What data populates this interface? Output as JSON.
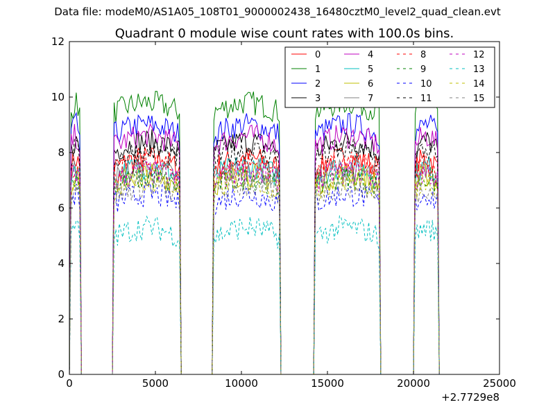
{
  "header": {
    "suptitle": "Data file: modeM0/AS1A05_108T01_9000002438_16480cztM0_level2_quad_clean.evt"
  },
  "chart_data": {
    "type": "line",
    "title": "Quadrant 0 module wise count rates with 100.0s bins.",
    "xlabel": "",
    "ylabel": "",
    "x_offset_label": "+2.7729e8",
    "xlim": [
      0,
      25000
    ],
    "ylim": [
      0,
      12
    ],
    "xticks": [
      0,
      5000,
      10000,
      15000,
      20000,
      25000
    ],
    "xtick_labels": [
      "0",
      "5000",
      "10000",
      "15000",
      "20000",
      "25000"
    ],
    "yticks": [
      0,
      2,
      4,
      6,
      8,
      10,
      12
    ],
    "ytick_labels": [
      "0",
      "2",
      "4",
      "6",
      "8",
      "10",
      "12"
    ],
    "grid": false,
    "legend_placement": "top-right",
    "legend_columns": 4,
    "bin_seconds": 100,
    "segments": [
      {
        "start": 100,
        "end": 600
      },
      {
        "start": 2600,
        "end": 6400
      },
      {
        "start": 8400,
        "end": 12200
      },
      {
        "start": 14300,
        "end": 18000
      },
      {
        "start": 20100,
        "end": 21400
      }
    ],
    "series": [
      {
        "name": "0",
        "color": "#ff0000",
        "style": "solid",
        "level": 7.6
      },
      {
        "name": "1",
        "color": "#008000",
        "style": "solid",
        "level": 9.6
      },
      {
        "name": "2",
        "color": "#0000ff",
        "style": "solid",
        "level": 8.8
      },
      {
        "name": "3",
        "color": "#000000",
        "style": "solid",
        "level": 8.2
      },
      {
        "name": "4",
        "color": "#bf00bf",
        "style": "solid",
        "level": 8.4
      },
      {
        "name": "5",
        "color": "#00bfbf",
        "style": "solid",
        "level": 7.3
      },
      {
        "name": "6",
        "color": "#bfbf00",
        "style": "solid",
        "level": 7.0
      },
      {
        "name": "7",
        "color": "#808080",
        "style": "solid",
        "level": 7.2
      },
      {
        "name": "8",
        "color": "#ff0000",
        "style": "dashed",
        "level": 7.4
      },
      {
        "name": "9",
        "color": "#008000",
        "style": "dashed",
        "level": 6.9
      },
      {
        "name": "10",
        "color": "#0000ff",
        "style": "dashed",
        "level": 6.3
      },
      {
        "name": "11",
        "color": "#000000",
        "style": "dashed",
        "level": 7.9
      },
      {
        "name": "12",
        "color": "#bf00bf",
        "style": "dashed",
        "level": 7.1
      },
      {
        "name": "13",
        "color": "#00bfbf",
        "style": "dashed",
        "level": 5.1
      },
      {
        "name": "14",
        "color": "#bfbf00",
        "style": "dashed",
        "level": 6.8
      },
      {
        "name": "15",
        "color": "#808080",
        "style": "dashed",
        "level": 6.6
      }
    ]
  }
}
